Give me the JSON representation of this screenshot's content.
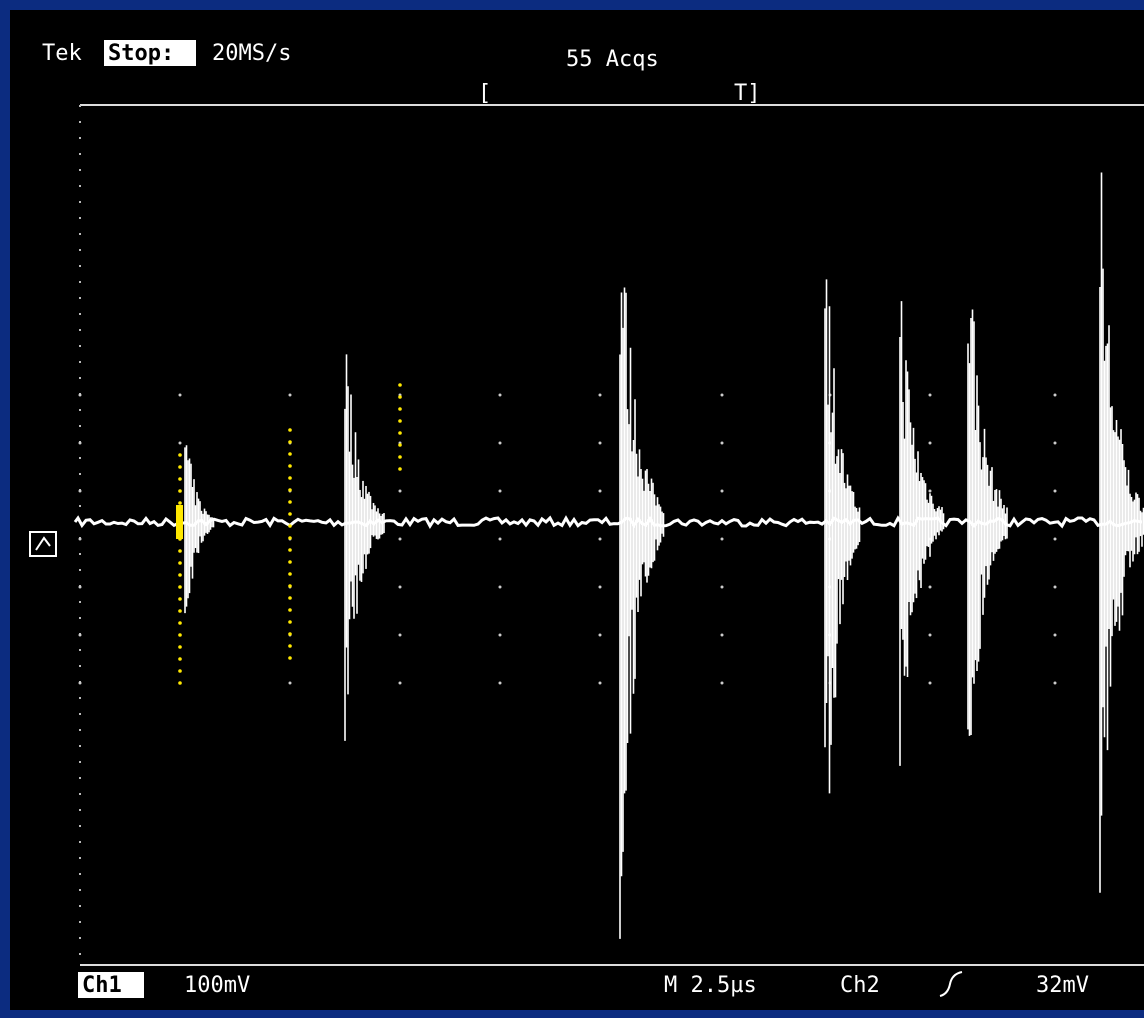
{
  "header": {
    "brand": "Tek",
    "status": "Stop:",
    "sample_rate": "20MS/s",
    "acquisitions": "55 Acqs",
    "cursor_left": "[",
    "trigger_marker": "T]"
  },
  "footer": {
    "channel": "Ch1",
    "ch1_scale": "100mV",
    "timebase": "M 2.5µs",
    "trigger_source": "Ch2",
    "trigger_level": "32mV"
  }
}
